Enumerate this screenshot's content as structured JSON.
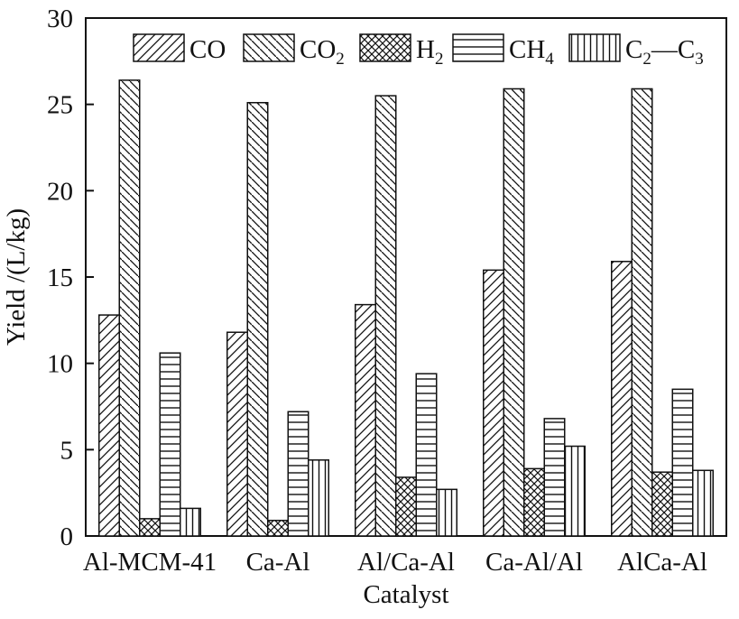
{
  "chart_data": {
    "type": "bar",
    "xlabel": "Catalyst",
    "ylabel": "Yield /(L/kg)",
    "ylim": [
      0,
      30
    ],
    "yticks": [
      "0",
      "5",
      "10",
      "15",
      "20",
      "25",
      "30"
    ],
    "grid": false,
    "legend_position": "top-right",
    "categories": [
      "Al-MCM-41",
      "Ca-Al",
      "Al/Ca-Al",
      "Ca-Al/Al",
      "AlCa-Al"
    ],
    "series": [
      {
        "name": "CO",
        "label_main": "CO",
        "label_sub": "",
        "pattern": "diag-up",
        "values": [
          12.8,
          11.8,
          13.4,
          15.4,
          15.9
        ]
      },
      {
        "name": "CO2",
        "label_main": "CO",
        "label_sub": "2",
        "pattern": "diag-down",
        "values": [
          26.4,
          25.1,
          25.5,
          25.9,
          25.9
        ]
      },
      {
        "name": "H2",
        "label_main": "H",
        "label_sub": "2",
        "pattern": "crosshatch",
        "values": [
          1.0,
          0.9,
          3.4,
          3.9,
          3.7
        ]
      },
      {
        "name": "CH4",
        "label_main": "CH",
        "label_sub": "4",
        "pattern": "horizontal",
        "values": [
          10.6,
          7.2,
          9.4,
          6.8,
          8.5
        ]
      },
      {
        "name": "C2—C3",
        "label_main": "C",
        "label_sub": "2",
        "label_mid": "—C",
        "label_sub2": "3",
        "pattern": "vertical",
        "values": [
          1.6,
          4.4,
          2.7,
          5.2,
          3.8
        ]
      }
    ]
  }
}
